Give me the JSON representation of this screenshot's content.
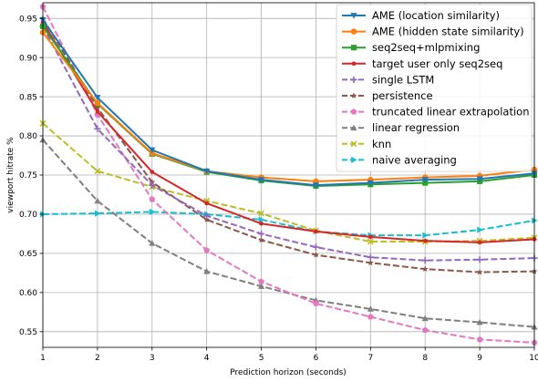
{
  "chart_data": {
    "type": "line",
    "title": "",
    "xlabel": "Prediction horizon (seconds)",
    "ylabel": "viewport hitrate %",
    "xlim": [
      1,
      10
    ],
    "ylim": [
      0.53,
      0.97
    ],
    "x": [
      1,
      2,
      3,
      4,
      5,
      6,
      7,
      8,
      9,
      10
    ],
    "xticks": [
      "1",
      "2",
      "3",
      "4",
      "5",
      "6",
      "7",
      "8",
      "9",
      "10"
    ],
    "yticks": [
      "0.55",
      "0.60",
      "0.65",
      "0.70",
      "0.75",
      "0.80",
      "0.85",
      "0.90",
      "0.95"
    ],
    "ytick_values": [
      0.55,
      0.6,
      0.65,
      0.7,
      0.75,
      0.8,
      0.85,
      0.9,
      0.95
    ],
    "grid": true,
    "legend_position": "top-right",
    "series": [
      {
        "name": "AME (location similarity)",
        "color": "#1f77b4",
        "style": "solid",
        "marker": "triangle-down",
        "values": [
          0.948,
          0.849,
          0.782,
          0.755,
          0.744,
          0.737,
          0.74,
          0.744,
          0.745,
          0.752
        ]
      },
      {
        "name": "AME (hidden state similarity)",
        "color": "#ff7f0e",
        "style": "solid",
        "marker": "circle",
        "values": [
          0.932,
          0.842,
          0.778,
          0.755,
          0.747,
          0.742,
          0.744,
          0.747,
          0.749,
          0.757
        ]
      },
      {
        "name": "seq2seq+mlpmixing",
        "color": "#2ca02c",
        "style": "solid",
        "marker": "square",
        "values": [
          0.94,
          0.841,
          0.777,
          0.754,
          0.743,
          0.736,
          0.738,
          0.74,
          0.742,
          0.75
        ]
      },
      {
        "name": "target user only seq2seq",
        "color": "#d62728",
        "style": "solid",
        "marker": "circle-small",
        "values": [
          0.945,
          0.831,
          0.754,
          0.714,
          0.688,
          0.678,
          0.671,
          0.666,
          0.664,
          0.668
        ]
      },
      {
        "name": "single LSTM",
        "color": "#9467bd",
        "style": "dashed",
        "marker": "plus",
        "values": [
          0.94,
          0.809,
          0.737,
          0.698,
          0.675,
          0.658,
          0.645,
          0.641,
          0.642,
          0.644
        ]
      },
      {
        "name": "persistence",
        "color": "#8c564b",
        "style": "dashed",
        "marker": "star",
        "values": [
          0.95,
          0.836,
          0.741,
          0.693,
          0.667,
          0.648,
          0.638,
          0.63,
          0.626,
          0.627
        ]
      },
      {
        "name": "truncated linear extrapolation",
        "color": "#e377c2",
        "style": "dashed",
        "marker": "pentagon",
        "values": [
          0.965,
          0.827,
          0.719,
          0.654,
          0.614,
          0.586,
          0.569,
          0.552,
          0.54,
          0.536
        ]
      },
      {
        "name": "linear regression",
        "color": "#7f7f7f",
        "style": "dashed",
        "marker": "triangle-up",
        "values": [
          0.795,
          0.717,
          0.663,
          0.627,
          0.608,
          0.59,
          0.579,
          0.567,
          0.562,
          0.556
        ]
      },
      {
        "name": "knn",
        "color": "#bcbd22",
        "style": "dashed",
        "marker": "x",
        "values": [
          0.816,
          0.755,
          0.735,
          0.717,
          0.701,
          0.679,
          0.665,
          0.665,
          0.666,
          0.67
        ]
      },
      {
        "name": "naive averaging",
        "color": "#17becf",
        "style": "dashed",
        "marker": "triangle-right",
        "values": [
          0.7,
          0.701,
          0.703,
          0.7,
          0.693,
          0.678,
          0.673,
          0.673,
          0.68,
          0.692
        ]
      }
    ]
  }
}
